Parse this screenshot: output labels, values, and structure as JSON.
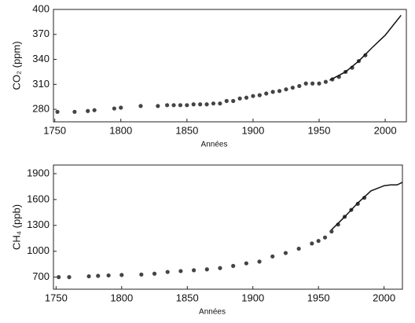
{
  "chart_data": [
    {
      "type": "scatter",
      "y_label": "CO₂ (ppm)",
      "x_label": "Années",
      "xlim": [
        1749,
        2016
      ],
      "ylim": [
        265,
        400
      ],
      "xticks": [
        1750,
        1800,
        1850,
        1900,
        1950,
        2000
      ],
      "yticks": [
        280,
        310,
        340,
        370,
        400
      ],
      "series": [
        {
          "type": "scatter",
          "color": "#444444",
          "x": [
            1752,
            1765,
            1775,
            1780,
            1795,
            1800,
            1815,
            1828,
            1835,
            1840,
            1845,
            1850,
            1855,
            1860,
            1865,
            1870,
            1875,
            1880,
            1885,
            1890,
            1895,
            1900,
            1905,
            1910,
            1915,
            1920,
            1925,
            1930,
            1935,
            1940,
            1945,
            1950,
            1955,
            1960,
            1965,
            1970,
            1975,
            1980,
            1985
          ],
          "values": [
            277,
            277,
            278,
            279,
            281,
            282,
            284,
            284,
            285,
            285,
            285,
            285,
            286,
            286,
            286,
            287,
            287,
            290,
            290,
            293,
            294,
            296,
            297,
            299,
            301,
            302,
            304,
            306,
            308,
            311,
            311,
            311,
            313,
            316,
            319,
            325,
            330,
            338,
            345
          ]
        },
        {
          "type": "line",
          "color": "#111111",
          "x": [
            1958,
            1970,
            1980,
            1990,
            2000,
            2005,
            2012
          ],
          "values": [
            315,
            325,
            338,
            354,
            369,
            379,
            393
          ]
        }
      ]
    },
    {
      "type": "scatter",
      "y_label": "CH₄ (ppb)",
      "x_label": "Années",
      "xlim": [
        1748,
        2014
      ],
      "ylim": [
        560,
        2000
      ],
      "xticks": [
        1750,
        1800,
        1850,
        1900,
        1950,
        2000
      ],
      "yticks": [
        700,
        1000,
        1300,
        1600,
        1900
      ],
      "series": [
        {
          "type": "scatter",
          "color": "#444444",
          "x": [
            1752,
            1760,
            1775,
            1782,
            1790,
            1800,
            1815,
            1825,
            1835,
            1845,
            1855,
            1865,
            1875,
            1885,
            1895,
            1905,
            1915,
            1925,
            1935,
            1945,
            1950,
            1955,
            1960,
            1965,
            1970,
            1975,
            1980,
            1985
          ],
          "values": [
            700,
            700,
            710,
            715,
            720,
            725,
            730,
            740,
            760,
            770,
            780,
            790,
            805,
            830,
            860,
            880,
            940,
            980,
            1030,
            1090,
            1120,
            1160,
            1230,
            1310,
            1400,
            1480,
            1550,
            1620
          ]
        },
        {
          "type": "line",
          "color": "#111111",
          "x": [
            1960,
            1970,
            1980,
            1990,
            2000,
            2005,
            2010,
            2014
          ],
          "values": [
            1250,
            1400,
            1560,
            1700,
            1760,
            1770,
            1770,
            1800
          ]
        }
      ]
    }
  ]
}
